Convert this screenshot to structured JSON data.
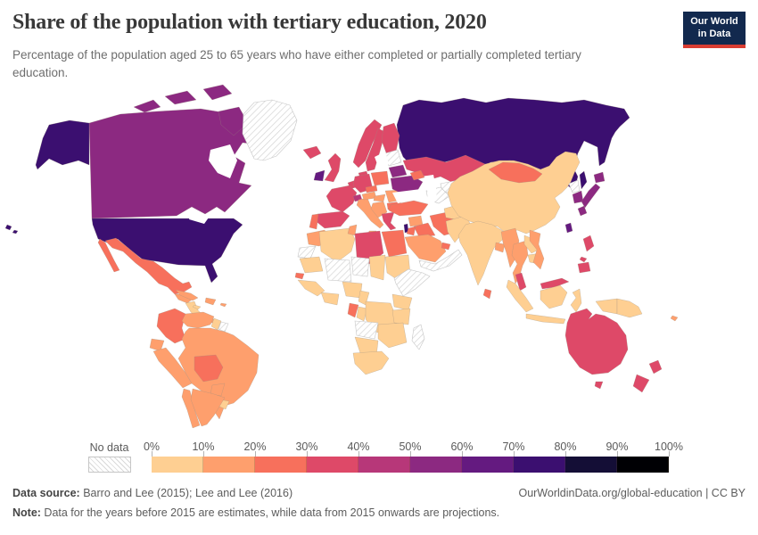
{
  "header": {
    "title": "Share of the population with tertiary education, 2020",
    "subtitle": "Percentage of the population aged 25 to 65 years who have either completed or partially completed tertiary education.",
    "logo": {
      "line1": "Our World",
      "line2": "in Data"
    }
  },
  "legend": {
    "no_data_label": "No data",
    "tick_labels": [
      "0%",
      "10%",
      "20%",
      "30%",
      "40%",
      "50%",
      "60%",
      "70%",
      "80%",
      "90%",
      "100%"
    ]
  },
  "footer": {
    "source_label": "Data source:",
    "source_text": " Barro and Lee (2015); Lee and Lee (2016)",
    "link_text": "OurWorldinData.org/global-education | CC BY",
    "note_label": "Note:",
    "note_text": " Data for the years before 2015 are estimates, while data from 2015 onwards are projections."
  },
  "colors": {
    "logo_bg": "#12294e",
    "logo_bar": "#d93d32",
    "title_text": "#383838",
    "body_text": "#5c5c5c"
  },
  "chart_data": {
    "type": "heatmap",
    "variant": "world-choropleth",
    "title": "Share of the population with tertiary education, 2020",
    "unit": "% of population aged 25 to 65",
    "year": 2020,
    "legend_buckets": [
      "0-10%",
      "10-20%",
      "20-30%",
      "30-40%",
      "40-50%",
      "50-60%",
      "60-70%",
      "70-80%",
      "80-90%",
      "90-100%"
    ],
    "palette": {
      "0-10%": "#fecf92",
      "10-20%": "#fe9f6d",
      "20-30%": "#f7705c",
      "30-40%": "#de4968",
      "40-50%": "#b73779",
      "50-60%": "#8c2981",
      "60-70%": "#641a80",
      "70-80%": "#3b0f70",
      "80-90%": "#140e36",
      "90-100%": "#000004"
    },
    "no_data": {
      "label": "No data",
      "style": "diagonal-hatch"
    },
    "regions": {
      "united-states": "70-80%",
      "canada": "50-60%",
      "greenland": "no-data",
      "mexico": "20-30%",
      "guatemala-honduras": "10-20%",
      "nicaragua-costa-rica": "0-10%",
      "panama": "10-20%",
      "cuba": "10-20%",
      "jamaica": "0-10%",
      "hispaniola": "10-20%",
      "puerto-rico": "10-20%",
      "colombia": "20-30%",
      "venezuela": "10-20%",
      "guyana": "0-10%",
      "suriname": "no-data",
      "ecuador": "10-20%",
      "peru": "10-20%",
      "brazil": "10-20%",
      "bolivia": "20-30%",
      "paraguay": "10-20%",
      "uruguay": "0-10%",
      "chile": "10-20%",
      "argentina": "10-20%",
      "iceland": "30-40%",
      "norway": "30-40%",
      "sweden": "30-40%",
      "finland": "30-40%",
      "denmark": "30-40%",
      "united-kingdom": "30-40%",
      "ireland": "60-70%",
      "benelux": "30-40%",
      "france": "30-40%",
      "spain": "30-40%",
      "portugal": "20-30%",
      "germany": "30-40%",
      "switzerland": "40-50%",
      "austria": "10-20%",
      "czechia": "20-30%",
      "poland": "20-30%",
      "italy": "10-20%",
      "hungary": "10-20%",
      "balkans": "10-20%",
      "romania": "10-20%",
      "bulgaria": "20-30%",
      "greece": "30-40%",
      "baltic-states": "no-data",
      "belarus": "50-60%",
      "ukraine": "50-60%",
      "russia": "70-80%",
      "kazakhstan": "30-40%",
      "uzbekistan": "no-data",
      "turkmenistan": "no-data",
      "kyrgyzstan": "30-40%",
      "tajikistan": "20-30%",
      "caucasus": "20-30%",
      "turkey": "20-30%",
      "syria": "10-20%",
      "iraq": "20-30%",
      "iran": "20-30%",
      "israel": "70-80%",
      "jordan": "20-30%",
      "saudi-arabia": "10-20%",
      "yemen-oman": "no-data",
      "gulf-states": "20-30%",
      "afghanistan": "0-10%",
      "pakistan": "0-10%",
      "india": "0-10%",
      "bangladesh": "10-20%",
      "sri-lanka": "20-30%",
      "china": "0-10%",
      "mongolia": "20-30%",
      "north-korea": "no-data",
      "south-korea": "50-60%",
      "japan": "50-60%",
      "taiwan": "60-70%",
      "myanmar": "10-20%",
      "thailand": "10-20%",
      "laos": "0-10%",
      "cambodia": "0-10%",
      "vietnam": "10-20%",
      "malaysia": "30-40%",
      "indonesia": "0-10%",
      "philippines": "30-40%",
      "papua-new-guinea": "0-10%",
      "fiji": "10-20%",
      "australia": "30-40%",
      "new-zealand": "30-40%",
      "morocco": "10-20%",
      "western-sahara": "no-data",
      "algeria": "0-10%",
      "tunisia": "10-20%",
      "libya": "30-40%",
      "egypt": "20-30%",
      "mauritania": "0-10%",
      "mali-burkina": "no-data",
      "niger": "no-data",
      "chad": "0-10%",
      "sudan": "0-10%",
      "horn-of-africa": "no-data",
      "senegal": "20-30%",
      "guinea-region": "0-10%",
      "ghana-cote-divoire": "0-10%",
      "nigeria": "0-10%",
      "cameroon": "0-10%",
      "gabon": "20-30%",
      "congo": "0-10%",
      "dr-congo": "0-10%",
      "uganda-kenya": "0-10%",
      "tanzania": "0-10%",
      "angola": "no-data",
      "zambia-zimbabwe-mozambique": "0-10%",
      "namibia-botswana": "0-10%",
      "south-africa": "0-10%",
      "madagascar": "no-data"
    }
  }
}
